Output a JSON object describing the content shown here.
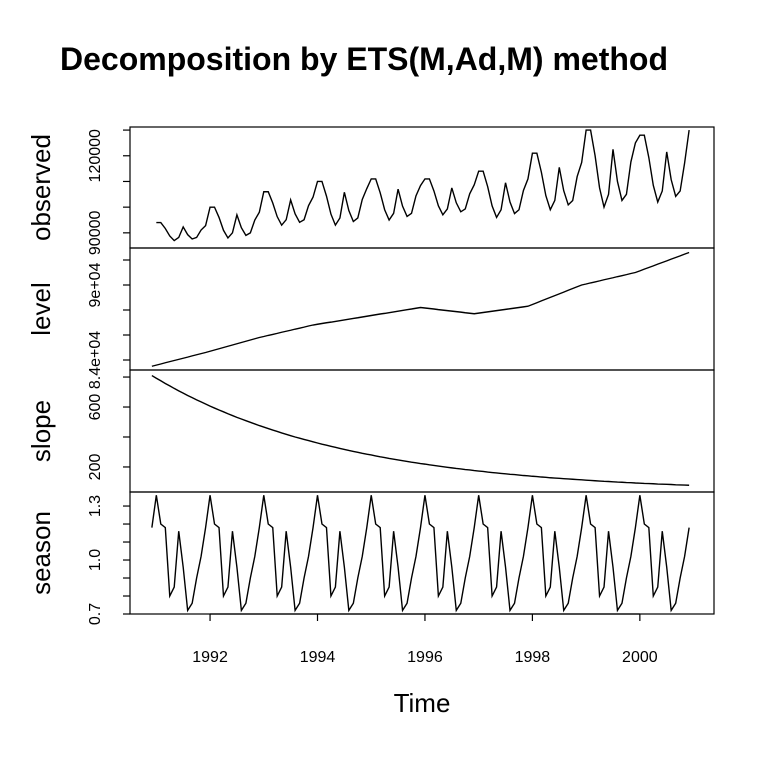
{
  "chart_data": {
    "type": "decomposition",
    "title": "Decomposition by ETS(M,Ad,M) method",
    "xlabel": "Time",
    "x": [
      1990.917,
      1991,
      1991.083,
      1991.167,
      1991.25,
      1991.333,
      1991.417,
      1991.5,
      1991.583,
      1991.667,
      1991.75,
      1991.833,
      1991.917,
      1992,
      1992.083,
      1992.167,
      1992.25,
      1992.333,
      1992.417,
      1992.5,
      1992.583,
      1992.667,
      1992.75,
      1992.833,
      1992.917,
      1993,
      1993.083,
      1993.167,
      1993.25,
      1993.333,
      1993.417,
      1993.5,
      1993.583,
      1993.667,
      1993.75,
      1993.833,
      1993.917,
      1994,
      1994.083,
      1994.167,
      1994.25,
      1994.333,
      1994.417,
      1994.5,
      1994.583,
      1994.667,
      1994.75,
      1994.833,
      1994.917,
      1995,
      1995.083,
      1995.167,
      1995.25,
      1995.333,
      1995.417,
      1995.5,
      1995.583,
      1995.667,
      1995.75,
      1995.833,
      1995.917,
      1996,
      1996.083,
      1996.167,
      1996.25,
      1996.333,
      1996.417,
      1996.5,
      1996.583,
      1996.667,
      1996.75,
      1996.833,
      1996.917,
      1997,
      1997.083,
      1997.167,
      1997.25,
      1997.333,
      1997.417,
      1997.5,
      1997.583,
      1997.667,
      1997.75,
      1997.833,
      1997.917,
      1998,
      1998.083,
      1998.167,
      1998.25,
      1998.333,
      1998.417,
      1998.5,
      1998.583,
      1998.667,
      1998.75,
      1998.833,
      1998.917,
      1999,
      1999.083,
      1999.167,
      1999.25,
      1999.333,
      1999.417,
      1999.5,
      1999.583,
      1999.667,
      1999.75,
      1999.833,
      1999.917,
      2000,
      2000.083,
      2000.167,
      2000.25,
      2000.333,
      2000.417,
      2000.5,
      2000.583,
      2000.667,
      2000.75,
      2000.833,
      2000.917
    ],
    "xlim": [
      1990.51,
      2001.38
    ],
    "xticks": [
      1992,
      1994,
      1996,
      1998,
      2000
    ],
    "series": [
      {
        "name": "observed",
        "color": "#000000",
        "ylim": [
          84100,
          131200
        ],
        "yticks": [
          90000,
          120000
        ],
        "minor_yticks": [
          100000,
          110000,
          130000
        ],
        "values": [
          null,
          94000,
          94000,
          91700,
          88800,
          87000,
          88200,
          92300,
          89300,
          87600,
          88200,
          91100,
          92800,
          100000,
          100000,
          96000,
          91000,
          88000,
          90000,
          97000,
          92000,
          89000,
          90000,
          95000,
          98000,
          106000,
          106000,
          101600,
          96300,
          93000,
          95100,
          102800,
          97400,
          94100,
          95100,
          100600,
          103900,
          110000,
          110000,
          104300,
          97300,
          93000,
          95800,
          105800,
          98700,
          94400,
          95800,
          103000,
          107200,
          111000,
          111000,
          105600,
          99000,
          95000,
          97600,
          107000,
          100400,
          96400,
          97600,
          104400,
          108400,
          111000,
          111000,
          106300,
          100500,
          97000,
          99300,
          107500,
          101700,
          98200,
          99300,
          105200,
          108700,
          114000,
          114000,
          108000,
          100500,
          96000,
          99000,
          109500,
          102000,
          97500,
          99000,
          106500,
          111000,
          121000,
          121000,
          113600,
          104500,
          99000,
          102600,
          115500,
          106400,
          100900,
          102600,
          111900,
          117400,
          130000,
          130000,
          120000,
          107500,
          100000,
          105000,
          122500,
          110000,
          102600,
          105000,
          117600,
          125000,
          128000,
          128000,
          119300,
          108500,
          102000,
          106300,
          121500,
          110700,
          104200,
          106300,
          117200,
          130000
        ]
      },
      {
        "name": "level",
        "color": "#000000",
        "ylim": [
          83200,
          92960
        ],
        "yticks": [
          {
            "value": 84000,
            "label": "8.4e+04"
          },
          {
            "value": 90000,
            "label": "9e+04"
          }
        ],
        "minor_yticks": [
          86000,
          88000,
          92000
        ],
        "values": [
          83500,
          83590,
          83680,
          83780,
          83870,
          83960,
          84050,
          84140,
          84230,
          84330,
          84420,
          84510,
          84600,
          84700,
          84800,
          84900,
          85000,
          85100,
          85200,
          85300,
          85400,
          85500,
          85600,
          85700,
          85800,
          85880,
          85970,
          86050,
          86130,
          86220,
          86300,
          86380,
          86470,
          86550,
          86630,
          86720,
          86800,
          86860,
          86920,
          86980,
          87030,
          87090,
          87150,
          87210,
          87270,
          87330,
          87380,
          87440,
          87500,
          87560,
          87620,
          87680,
          87730,
          87790,
          87850,
          87910,
          87970,
          88030,
          88080,
          88140,
          88200,
          88160,
          88120,
          88080,
          88030,
          87990,
          87950,
          87910,
          87870,
          87830,
          87780,
          87740,
          87700,
          87750,
          87800,
          87850,
          87900,
          87950,
          88000,
          88050,
          88100,
          88150,
          88200,
          88250,
          88300,
          88440,
          88580,
          88730,
          88870,
          89010,
          89150,
          89290,
          89430,
          89580,
          89720,
          89860,
          90000,
          90080,
          90170,
          90250,
          90330,
          90420,
          90500,
          90580,
          90670,
          90750,
          90830,
          90920,
          91000,
          91130,
          91270,
          91400,
          91530,
          91670,
          91800,
          91930,
          92070,
          92200,
          92330,
          92470,
          92600
        ]
      },
      {
        "name": "slope",
        "color": "#000000",
        "ylim": [
          33,
          847
        ],
        "yticks": [
          200,
          600
        ],
        "minor_yticks": [
          400,
          800
        ],
        "values": [
          810,
          792,
          775,
          757,
          741,
          724,
          708,
          693,
          677,
          663,
          648,
          634,
          620,
          606,
          593,
          580,
          568,
          555,
          543,
          531,
          520,
          509,
          498,
          487,
          476,
          466,
          456,
          446,
          437,
          427,
          418,
          409,
          400,
          392,
          384,
          376,
          368,
          360,
          352,
          345,
          338,
          331,
          324,
          317,
          310,
          304,
          298,
          291,
          285,
          280,
          274,
          268,
          263,
          257,
          252,
          247,
          242,
          237,
          232,
          228,
          223,
          219,
          214,
          210,
          206,
          202,
          198,
          194,
          190,
          187,
          183,
          180,
          176,
          173,
          170,
          166,
          163,
          160,
          157,
          154,
          151,
          149,
          146,
          143,
          141,
          138,
          136,
          133,
          131,
          128,
          126,
          124,
          122,
          120,
          118,
          116,
          114,
          112,
          110,
          108,
          106,
          104,
          103,
          101,
          99,
          98,
          96,
          95,
          93,
          92,
          90,
          89,
          88,
          86,
          85,
          84,
          83,
          81,
          80,
          79,
          78
        ]
      },
      {
        "name": "season",
        "color": "#000000",
        "ylim": [
          0.7,
          1.378
        ],
        "yticks": [
          0.7,
          {
            "value": 1,
            "label": "1.0"
          },
          1.3
        ],
        "minor_yticks": [
          0.8,
          0.9,
          1.1,
          1.2
        ],
        "values": [
          1.18,
          1.36,
          1.2,
          1.18,
          0.8,
          0.85,
          1.16,
          0.96,
          0.72,
          0.76,
          0.9,
          1.02,
          1.18,
          1.36,
          1.2,
          1.18,
          0.8,
          0.85,
          1.16,
          0.96,
          0.72,
          0.76,
          0.9,
          1.02,
          1.18,
          1.36,
          1.2,
          1.18,
          0.8,
          0.85,
          1.16,
          0.96,
          0.72,
          0.76,
          0.9,
          1.02,
          1.18,
          1.36,
          1.2,
          1.18,
          0.8,
          0.85,
          1.16,
          0.96,
          0.72,
          0.76,
          0.9,
          1.02,
          1.18,
          1.36,
          1.2,
          1.18,
          0.8,
          0.85,
          1.16,
          0.96,
          0.72,
          0.76,
          0.9,
          1.02,
          1.18,
          1.36,
          1.2,
          1.18,
          0.8,
          0.85,
          1.16,
          0.96,
          0.72,
          0.76,
          0.9,
          1.02,
          1.18,
          1.36,
          1.2,
          1.18,
          0.8,
          0.85,
          1.16,
          0.96,
          0.72,
          0.76,
          0.9,
          1.02,
          1.18,
          1.36,
          1.2,
          1.18,
          0.8,
          0.85,
          1.16,
          0.96,
          0.72,
          0.76,
          0.9,
          1.02,
          1.18,
          1.36,
          1.2,
          1.18,
          0.8,
          0.85,
          1.16,
          0.96,
          0.72,
          0.76,
          0.9,
          1.02,
          1.18,
          1.36,
          1.2,
          1.18,
          0.8,
          0.85,
          1.16,
          0.96,
          0.72,
          0.76,
          0.9,
          1.02,
          1.18
        ]
      }
    ]
  }
}
